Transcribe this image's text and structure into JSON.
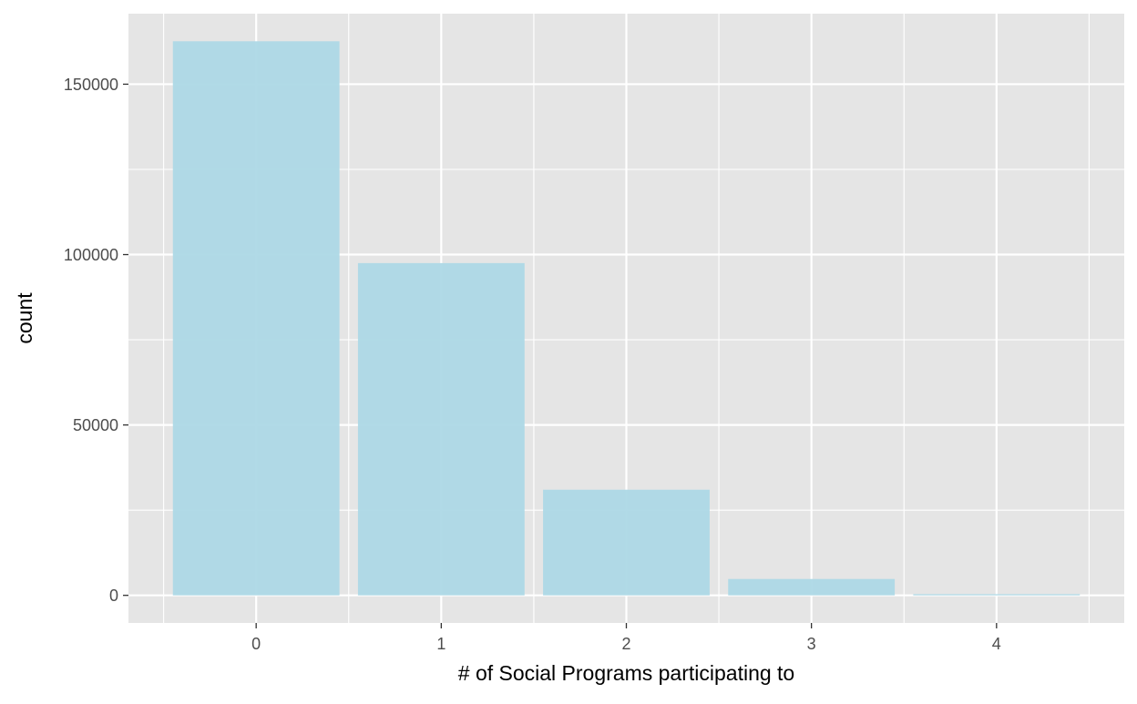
{
  "chart_data": {
    "type": "bar",
    "title": "",
    "xlabel": "# of Social Programs participating to",
    "ylabel": "count",
    "categories": [
      "0",
      "1",
      "2",
      "3",
      "4"
    ],
    "values": [
      162600,
      97500,
      31000,
      4800,
      350
    ],
    "ylim": [
      -8100,
      170700
    ],
    "xlim": [
      -0.69,
      4.69
    ],
    "y_ticks": [
      0,
      50000,
      100000,
      150000
    ],
    "y_tick_labels": [
      "0",
      "50000",
      "100000",
      "150000"
    ],
    "grid": true,
    "legend": "none",
    "colors": {
      "panel_background": "#E5E5E5",
      "grid": "#FFFFFF",
      "bar_fill": "#ADD8E6",
      "tick_label": "#4D4D4D",
      "axis_title": "#000000",
      "tick_mark": "#333333"
    }
  }
}
